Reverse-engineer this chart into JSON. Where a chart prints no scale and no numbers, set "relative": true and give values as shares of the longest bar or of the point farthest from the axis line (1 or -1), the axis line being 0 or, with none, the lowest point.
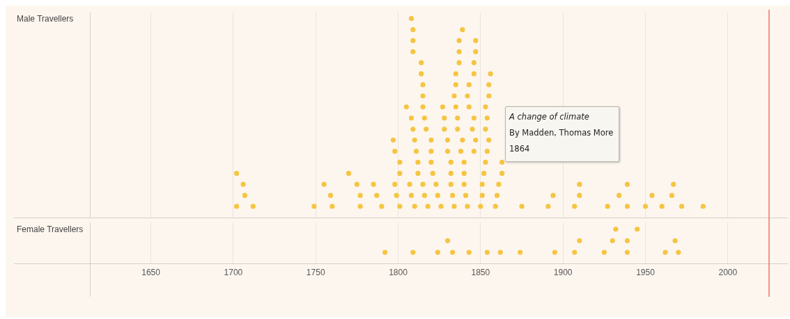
{
  "chart_data": [
    {
      "type": "scatter",
      "marker": "circle",
      "grid": "x",
      "tick_labels": false,
      "legend": false,
      "relative": true,
      "xlim": [
        1613,
        2036
      ],
      "xticks": [
        1650,
        1700,
        1750,
        1800,
        1850,
        1900,
        1950,
        2000
      ],
      "ref_lines": [
        {
          "axis": "x",
          "value": 2025,
          "color": "#f0735f"
        }
      ],
      "annotations": [
        "A change of climate",
        "By Madden, Thomas More",
        "1864"
      ],
      "series": [
        {
          "name": "Male Travellers",
          "color": "#f5c542",
          "x": [
            1702,
            1712,
            1749,
            1760,
            1777,
            1790,
            1801,
            1810,
            1818,
            1826,
            1834,
            1842,
            1850,
            1859,
            1875,
            1891,
            1907,
            1927,
            1939,
            1950,
            1960,
            1972,
            1985,
            1707,
            1759,
            1777,
            1787,
            1799,
            1808,
            1816,
            1824,
            1833,
            1841,
            1851,
            1860,
            1894,
            1910,
            1934,
            1954,
            1966,
            1706,
            1755,
            1775,
            1785,
            1798,
            1807,
            1815,
            1823,
            1832,
            1840,
            1851,
            1861,
            1910,
            1939,
            1967,
            1702,
            1770,
            1801,
            1812,
            1821,
            1832,
            1840,
            1852,
            1863,
            1801,
            1812,
            1820,
            1832,
            1840,
            1853,
            1863,
            1798,
            1811,
            1820,
            1830,
            1838,
            1846,
            1854,
            1797,
            1810,
            1820,
            1830,
            1839,
            1847,
            1855,
            1809,
            1817,
            1828,
            1836,
            1845,
            1853,
            1808,
            1816,
            1828,
            1836,
            1846,
            1854,
            1805,
            1815,
            1827,
            1835,
            1843,
            1853,
            1815,
            1834,
            1842,
            1855,
            1815,
            1835,
            1843,
            1855,
            1814,
            1835,
            1846,
            1856,
            1814,
            1837,
            1846,
            1809,
            1837,
            1847,
            1809,
            1837,
            1847,
            1809,
            1839,
            1808
          ],
          "values": [
            0.056,
            0.056,
            0.056,
            0.056,
            0.056,
            0.056,
            0.056,
            0.056,
            0.056,
            0.056,
            0.056,
            0.056,
            0.056,
            0.056,
            0.056,
            0.056,
            0.056,
            0.056,
            0.056,
            0.056,
            0.056,
            0.056,
            0.056,
            0.111,
            0.111,
            0.111,
            0.111,
            0.111,
            0.111,
            0.111,
            0.111,
            0.111,
            0.111,
            0.111,
            0.111,
            0.111,
            0.111,
            0.111,
            0.111,
            0.111,
            0.167,
            0.167,
            0.167,
            0.167,
            0.167,
            0.167,
            0.167,
            0.167,
            0.167,
            0.167,
            0.167,
            0.167,
            0.167,
            0.167,
            0.167,
            0.222,
            0.222,
            0.222,
            0.222,
            0.222,
            0.222,
            0.222,
            0.222,
            0.222,
            0.278,
            0.278,
            0.278,
            0.278,
            0.278,
            0.278,
            0.278,
            0.333,
            0.333,
            0.333,
            0.333,
            0.333,
            0.333,
            0.333,
            0.389,
            0.389,
            0.389,
            0.389,
            0.389,
            0.389,
            0.389,
            0.444,
            0.444,
            0.444,
            0.444,
            0.444,
            0.444,
            0.5,
            0.5,
            0.5,
            0.5,
            0.5,
            0.5,
            0.556,
            0.556,
            0.556,
            0.556,
            0.556,
            0.556,
            0.611,
            0.611,
            0.611,
            0.611,
            0.667,
            0.667,
            0.667,
            0.667,
            0.722,
            0.722,
            0.722,
            0.722,
            0.778,
            0.778,
            0.778,
            0.833,
            0.833,
            0.833,
            0.889,
            0.889,
            0.889,
            0.944,
            0.944,
            1
          ]
        }
      ]
    },
    {
      "type": "scatter",
      "marker": "circle",
      "grid": "x",
      "tick_labels": "x",
      "legend": false,
      "relative": true,
      "xlim": [
        1613,
        2036
      ],
      "xticks": [
        1650,
        1700,
        1750,
        1800,
        1850,
        1900,
        1950,
        2000
      ],
      "ref_lines": [
        {
          "axis": "x",
          "value": 2025,
          "color": "#f0735f"
        }
      ],
      "series": [
        {
          "name": "Female Travellers",
          "color": "#f5c542",
          "x": [
            1792,
            1809,
            1824,
            1833,
            1843,
            1854,
            1862,
            1874,
            1895,
            1907,
            1925,
            1939,
            1962,
            1970,
            1830,
            1910,
            1930,
            1939,
            1968,
            1932,
            1945
          ],
          "values": [
            0.333,
            0.333,
            0.333,
            0.333,
            0.333,
            0.333,
            0.333,
            0.333,
            0.333,
            0.333,
            0.333,
            0.333,
            0.333,
            0.333,
            0.667,
            0.667,
            0.667,
            0.667,
            0.667,
            1,
            1
          ]
        }
      ]
    }
  ]
}
